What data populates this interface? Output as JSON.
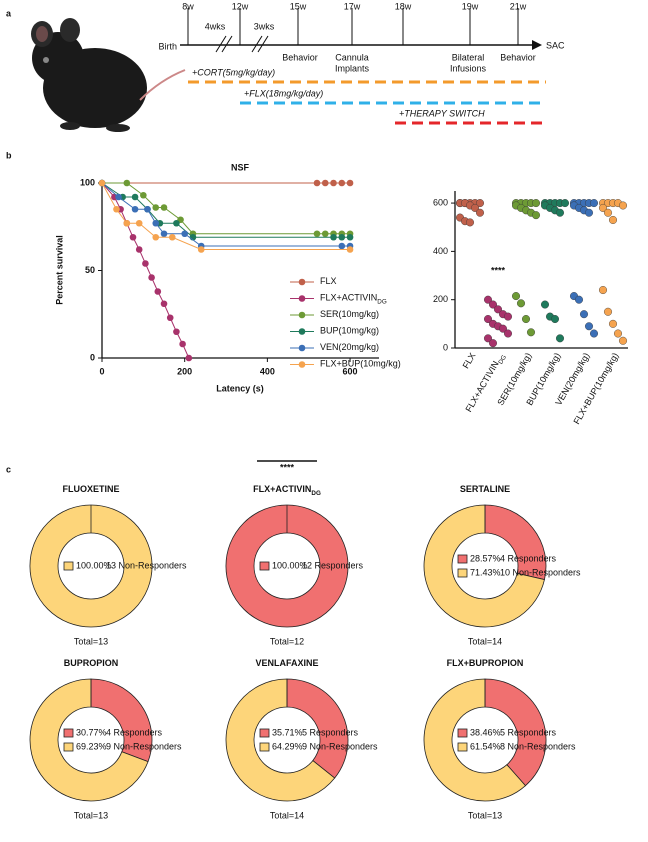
{
  "panel_labels": [
    "a",
    "b",
    "c"
  ],
  "timeline": {
    "ticks": [
      "8w",
      "12w",
      "15w",
      "17w",
      "18w",
      "19w",
      "21w"
    ],
    "intervals": [
      "4wks",
      "3wks"
    ],
    "start": "Birth",
    "end": "SAC",
    "events": [
      [
        "Behavior"
      ],
      [
        "Cannula",
        "Implants"
      ],
      [
        "Bilateral",
        "Infusions"
      ],
      [
        "Behavior"
      ]
    ],
    "treatments": [
      "+CORT(5mg/kg/day)",
      "+FLX(18mg/kg/day)",
      "+THERAPY SWITCH"
    ],
    "treatment_colors": [
      "#f39a2b",
      "#2fb0e8",
      "#e4262a"
    ]
  },
  "chart_data": [
    {
      "type": "line",
      "title": "NSF",
      "xlabel": "Latency (s)",
      "ylabel": "Percent survival",
      "xlim": [
        0,
        670
      ],
      "xticks": [
        0,
        200,
        400,
        600
      ],
      "ylim": [
        0,
        100
      ],
      "yticks": [
        0,
        50,
        100
      ],
      "series": [
        {
          "name": "FLX",
          "color": "#c0604a",
          "x": [
            0,
            520,
            540,
            560,
            580,
            600
          ],
          "values": [
            100,
            100,
            100,
            100,
            100,
            100
          ]
        },
        {
          "name": "FLX+ACTIVIN",
          "name_subscript": "DG",
          "color": "#a8326b",
          "x": [
            0,
            30,
            45,
            60,
            75,
            90,
            105,
            120,
            135,
            150,
            165,
            180,
            195,
            210
          ],
          "values": [
            100,
            92,
            85,
            77,
            69,
            62,
            54,
            46,
            38,
            31,
            23,
            15,
            8,
            0
          ]
        },
        {
          "name": "SER(10mg/kg)",
          "color": "#6d9a35",
          "x": [
            0,
            60,
            100,
            130,
            150,
            190,
            220,
            520,
            540,
            560,
            580,
            600
          ],
          "values": [
            100,
            100,
            93,
            86,
            86,
            79,
            71,
            71,
            71,
            71,
            71,
            71
          ]
        },
        {
          "name": "BUP(10mg/kg)",
          "color": "#1f7a5c",
          "x": [
            0,
            50,
            80,
            110,
            140,
            180,
            220,
            560,
            580,
            600
          ],
          "values": [
            100,
            92,
            92,
            85,
            77,
            77,
            69,
            69,
            69,
            69
          ]
        },
        {
          "name": "VEN(20mg/kg)",
          "color": "#3b6fb6",
          "x": [
            0,
            40,
            80,
            110,
            130,
            150,
            200,
            240,
            580,
            600
          ],
          "values": [
            100,
            92,
            85,
            85,
            77,
            71,
            71,
            64,
            64,
            64
          ]
        },
        {
          "name": "FLX+BUP(10mg/kg)",
          "color": "#f5a34f",
          "x": [
            0,
            35,
            60,
            90,
            130,
            170,
            240,
            600
          ],
          "values": [
            100,
            85,
            77,
            77,
            69,
            69,
            62,
            62
          ]
        }
      ]
    },
    {
      "type": "strip",
      "ylim": [
        0,
        650
      ],
      "yticks": [
        0,
        200,
        400,
        600
      ],
      "annotation": "****",
      "categories": [
        "FLX",
        "FLX+ACTIVIN",
        "SER(10mg/kg)",
        "BUP(10mg/kg)",
        "VEN(20mg/kg)",
        "FLX+BUP(10mg/kg)"
      ],
      "category_subscripts": [
        null,
        "DG",
        null,
        null,
        null,
        null
      ],
      "colors": [
        "#c0604a",
        "#a8326b",
        "#6d9a35",
        "#1f7a5c",
        "#3b6fb6",
        "#f5a34f"
      ],
      "values": [
        [
          600,
          600,
          600,
          600,
          600,
          600,
          600,
          590,
          580,
          560,
          540,
          525,
          520
        ],
        [
          200,
          180,
          160,
          140,
          130,
          120,
          100,
          90,
          80,
          60,
          40,
          20
        ],
        [
          600,
          600,
          600,
          600,
          600,
          590,
          580,
          570,
          560,
          550,
          215,
          185,
          120,
          65
        ],
        [
          600,
          600,
          600,
          600,
          600,
          590,
          580,
          570,
          560,
          180,
          130,
          120,
          40
        ],
        [
          600,
          600,
          600,
          600,
          600,
          590,
          580,
          570,
          560,
          215,
          200,
          140,
          90,
          60
        ],
        [
          600,
          600,
          600,
          600,
          590,
          580,
          560,
          530,
          240,
          150,
          100,
          60,
          30
        ]
      ]
    },
    {
      "type": "donut",
      "title": "FLUOXETINE",
      "values": [
        100
      ],
      "value_labels": [
        "100.00%"
      ],
      "legend_labels": [
        "13 Non-Responders"
      ],
      "colors": [
        "#fdd57a"
      ],
      "total_label": "Total=13"
    },
    {
      "type": "donut",
      "title": "FLX+ACTIVIN",
      "title_subscript": "DG",
      "annotation": "****",
      "values": [
        100
      ],
      "value_labels": [
        "100.00%"
      ],
      "legend_labels": [
        "12 Responders"
      ],
      "colors": [
        "#f07070"
      ],
      "total_label": "Total=12"
    },
    {
      "type": "donut",
      "title": "SERTALINE",
      "values": [
        28.57,
        71.43
      ],
      "value_labels": [
        "28.57%",
        "71.43%"
      ],
      "legend_labels": [
        "4 Responders",
        "10 Non-Responders"
      ],
      "colors": [
        "#f07070",
        "#fdd57a"
      ],
      "total_label": "Total=14"
    },
    {
      "type": "donut",
      "title": "BUPROPION",
      "values": [
        30.77,
        69.23
      ],
      "value_labels": [
        "30.77%",
        "69.23%"
      ],
      "legend_labels": [
        "4 Responders",
        "9 Non-Responders"
      ],
      "colors": [
        "#f07070",
        "#fdd57a"
      ],
      "total_label": "Total=13"
    },
    {
      "type": "donut",
      "title": "VENLAFAXINE",
      "values": [
        35.71,
        64.29
      ],
      "value_labels": [
        "35.71%",
        "64.29%"
      ],
      "legend_labels": [
        "5 Responders",
        "9 Non-Responders"
      ],
      "colors": [
        "#f07070",
        "#fdd57a"
      ],
      "total_label": "Total=14"
    },
    {
      "type": "donut",
      "title": "FLX+BUPROPION",
      "values": [
        38.46,
        61.54
      ],
      "value_labels": [
        "38.46%",
        "61.54%"
      ],
      "legend_labels": [
        "5 Responders",
        "8 Non-Responders"
      ],
      "colors": [
        "#f07070",
        "#fdd57a"
      ],
      "total_label": "Total=13"
    }
  ]
}
